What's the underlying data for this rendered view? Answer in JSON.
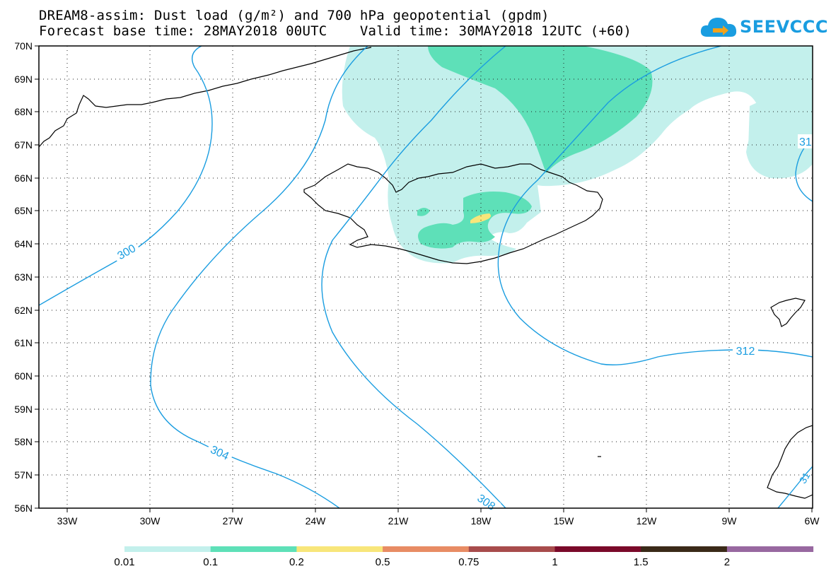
{
  "title": {
    "line1": "DREAM8-assim: Dust load (g/m²) and 700 hPa geopotential (gpdm)",
    "line2": "Forecast base time: 28MAY2018 00UTC    Valid time: 30MAY2018 12UTC (+60)"
  },
  "logo": {
    "text": "SEEVCCC",
    "icon": "cloud-icon",
    "color": "#1a9de0"
  },
  "map": {
    "lat_labels": [
      "70N",
      "69N",
      "68N",
      "67N",
      "66N",
      "65N",
      "64N",
      "63N",
      "62N",
      "61N",
      "60N",
      "59N",
      "58N",
      "57N",
      "56N"
    ],
    "lon_labels": [
      "33W",
      "30W",
      "27W",
      "24W",
      "21W",
      "18W",
      "15W",
      "12W",
      "9W",
      "6W"
    ],
    "contour_labels": [
      "300",
      "304",
      "308",
      "312",
      "31",
      "31"
    ],
    "contour_color": "#1a9de0",
    "coast_color": "#000000"
  },
  "colorbar": {
    "colors": [
      "#c3f0ec",
      "#5ee0b8",
      "#f8e67a",
      "#e88c64",
      "#a84c4c",
      "#7a0a2a",
      "#3a2a18",
      "#9868a0"
    ],
    "labels": [
      "0.01",
      "0.1",
      "0.2",
      "0.5",
      "0.75",
      "1",
      "1.5",
      "2"
    ]
  }
}
